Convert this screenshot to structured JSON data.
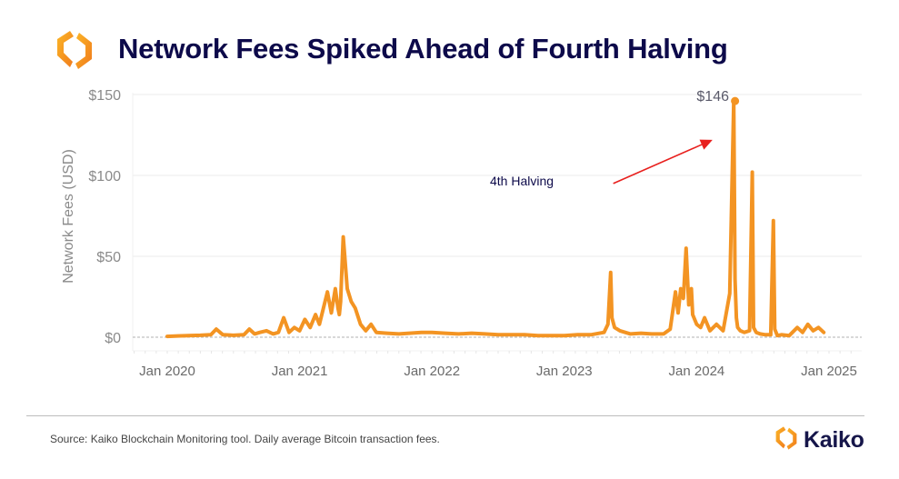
{
  "header": {
    "title": "Network Fees Spiked Ahead of Fourth Halving",
    "logo_icon": "kaiko-logo-icon"
  },
  "footer": {
    "source": "Source: Kaiko Blockchain Monitoring tool. Daily average Bitcoin transaction fees.",
    "brand_name": "Kaiko",
    "brand_icon": "kaiko-logo-icon"
  },
  "colors": {
    "line": "#f39423",
    "title": "#0d0a4a",
    "arrow": "#e8201e",
    "grid": "#ebebeb",
    "axis_text": "#7a7a7a",
    "zero_line": "#b0b0b0"
  },
  "chart_data": {
    "type": "line",
    "title": "Network Fees Spiked Ahead of Fourth Halving",
    "xlabel": "",
    "ylabel": "Network Fees (USD)",
    "ylim": [
      0,
      150
    ],
    "xlim": [
      2019.75,
      2025.2
    ],
    "yticks": [
      0,
      50,
      100,
      150
    ],
    "ytick_labels": [
      "$0",
      "$50",
      "$100",
      "$150"
    ],
    "xticks": [
      2020,
      2021,
      2022,
      2023,
      2024,
      2025
    ],
    "xtick_labels": [
      "Jan 2020",
      "Jan 2021",
      "Jan 2022",
      "Jan 2023",
      "Jan 2024",
      "Jan 2025"
    ],
    "grid": true,
    "legend": "none",
    "series": [
      {
        "name": "Daily average Bitcoin transaction fee (USD)",
        "x": [
          2020.0,
          2020.08,
          2020.16,
          2020.25,
          2020.33,
          2020.37,
          2020.42,
          2020.5,
          2020.58,
          2020.62,
          2020.66,
          2020.7,
          2020.75,
          2020.8,
          2020.84,
          2020.88,
          2020.92,
          2020.96,
          2021.0,
          2021.04,
          2021.08,
          2021.12,
          2021.15,
          2021.18,
          2021.21,
          2021.24,
          2021.27,
          2021.29,
          2021.3,
          2021.31,
          2021.33,
          2021.36,
          2021.39,
          2021.42,
          2021.46,
          2021.5,
          2021.54,
          2021.58,
          2021.66,
          2021.75,
          2021.83,
          2021.92,
          2022.0,
          2022.1,
          2022.2,
          2022.3,
          2022.4,
          2022.5,
          2022.6,
          2022.7,
          2022.8,
          2022.9,
          2023.0,
          2023.1,
          2023.2,
          2023.3,
          2023.33,
          2023.35,
          2023.36,
          2023.38,
          2023.42,
          2023.5,
          2023.58,
          2023.66,
          2023.75,
          2023.8,
          2023.84,
          2023.86,
          2023.88,
          2023.9,
          2023.92,
          2023.94,
          2023.96,
          2023.97,
          2024.0,
          2024.03,
          2024.06,
          2024.1,
          2024.15,
          2024.2,
          2024.25,
          2024.28,
          2024.29,
          2024.3,
          2024.31,
          2024.33,
          2024.36,
          2024.4,
          2024.42,
          2024.43,
          2024.45,
          2024.48,
          2024.52,
          2024.56,
          2024.58,
          2024.59,
          2024.61,
          2024.64,
          2024.7,
          2024.76,
          2024.8,
          2024.84,
          2024.88,
          2024.92,
          2024.96
        ],
        "values": [
          0.5,
          0.8,
          1.0,
          1.2,
          1.5,
          5,
          1.5,
          1.2,
          1.5,
          5,
          2,
          3,
          4,
          2,
          3,
          12,
          3,
          6,
          4,
          11,
          6,
          14,
          8,
          18,
          28,
          15,
          30,
          18,
          14,
          22,
          62,
          30,
          22,
          18,
          8,
          4,
          8,
          3,
          2.5,
          2,
          2.5,
          3,
          3,
          2.5,
          2,
          2.5,
          2,
          1.5,
          1.5,
          1.5,
          1.0,
          1.0,
          1.0,
          1.5,
          1.5,
          3,
          8,
          40,
          12,
          6,
          4,
          2,
          2.5,
          2,
          2,
          5,
          28,
          15,
          30,
          24,
          55,
          20,
          30,
          14,
          8,
          6,
          12,
          4,
          8,
          4,
          27,
          146,
          36,
          12,
          6,
          4,
          3,
          4,
          102,
          6,
          3,
          2,
          1.5,
          1.5,
          72,
          5,
          1,
          1.5,
          1,
          6,
          3,
          8,
          4,
          6,
          3
        ]
      }
    ],
    "annotations": [
      {
        "text": "$146",
        "x": 2024.29,
        "y": 146,
        "type": "data-label"
      },
      {
        "text": "4th Halving",
        "type": "arrow-label",
        "arrow_from": [
          2023.37,
          95
        ],
        "arrow_to": [
          2024.12,
          122
        ]
      }
    ]
  }
}
